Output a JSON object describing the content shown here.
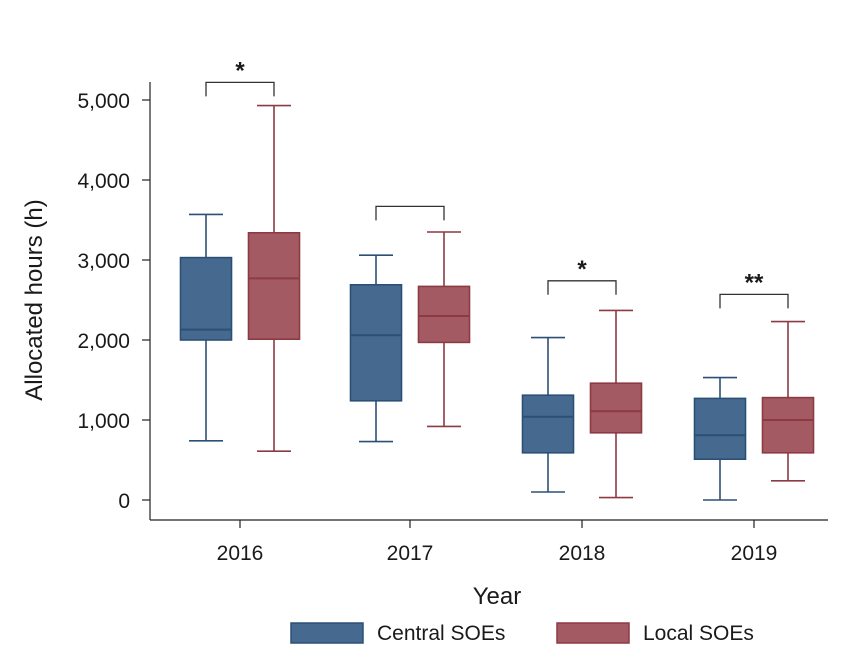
{
  "chart_data": {
    "type": "box",
    "xlabel": "Year",
    "ylabel": "Allocated hours (h)",
    "ylim": [
      0,
      5000
    ],
    "yticks": [
      0,
      1000,
      2000,
      3000,
      4000,
      5000
    ],
    "ytick_labels": [
      "0",
      "1,000",
      "2,000",
      "3,000",
      "4,000",
      "5,000"
    ],
    "categories": [
      "2016",
      "2017",
      "2018",
      "2019"
    ],
    "series": [
      {
        "name": "Central SOEs",
        "color": "#466a8f",
        "edge": "#2c5075",
        "boxes": [
          {
            "min": 740,
            "q1": 2000,
            "median": 2130,
            "q3": 3030,
            "max": 3570
          },
          {
            "min": 730,
            "q1": 1240,
            "median": 2060,
            "q3": 2690,
            "max": 3060
          },
          {
            "min": 100,
            "q1": 590,
            "median": 1040,
            "q3": 1310,
            "max": 2030
          },
          {
            "min": 0,
            "q1": 510,
            "median": 810,
            "q3": 1270,
            "max": 1530
          }
        ]
      },
      {
        "name": "Local SOEs",
        "color": "#a45a62",
        "edge": "#8c3a44",
        "boxes": [
          {
            "min": 610,
            "q1": 2010,
            "median": 2770,
            "q3": 3340,
            "max": 4930
          },
          {
            "min": 920,
            "q1": 1970,
            "median": 2300,
            "q3": 2670,
            "max": 3350
          },
          {
            "min": 30,
            "q1": 840,
            "median": 1110,
            "q3": 1460,
            "max": 2370
          },
          {
            "min": 240,
            "q1": 590,
            "median": 1000,
            "q3": 1280,
            "max": 2230
          }
        ]
      }
    ],
    "significance": [
      {
        "category": "2016",
        "label": "*",
        "bracket_y": 5220
      },
      {
        "category": "2017",
        "label": "",
        "bracket_y": 3670
      },
      {
        "category": "2018",
        "label": "*",
        "bracket_y": 2740
      },
      {
        "category": "2019",
        "label": "**",
        "bracket_y": 2570
      }
    ],
    "legend": {
      "position": "bottom",
      "entries": [
        "Central SOEs",
        "Local SOEs"
      ]
    }
  }
}
